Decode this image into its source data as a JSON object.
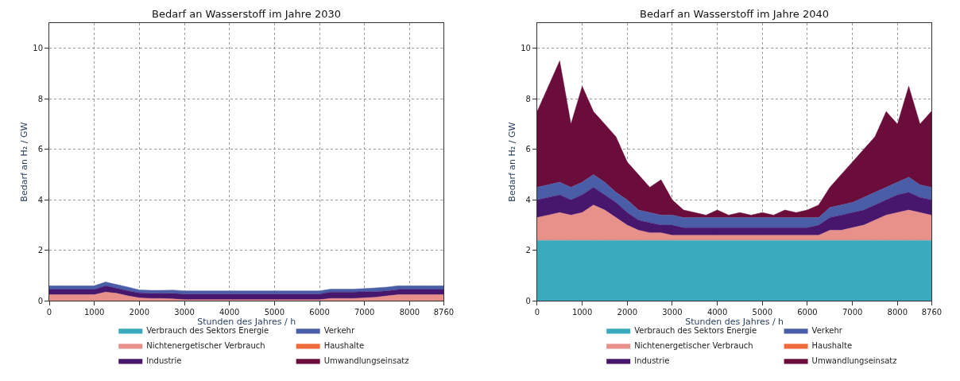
{
  "chart_data": [
    {
      "type": "area",
      "stacked": true,
      "title": "Bedarf an Wasserstoff im Jahre 2030",
      "xlabel": "Stunden des Jahres / h",
      "ylabel": "Bedarf an H₂ / GW",
      "x": [
        0,
        250,
        500,
        750,
        1000,
        1250,
        1500,
        1750,
        2000,
        2250,
        2500,
        2750,
        3000,
        3250,
        3500,
        3750,
        4000,
        4250,
        4500,
        4750,
        5000,
        5250,
        5500,
        5750,
        6000,
        6250,
        6500,
        6750,
        7000,
        7250,
        7500,
        7750,
        8000,
        8250,
        8500,
        8750,
        8760
      ],
      "xlim": [
        0,
        8760
      ],
      "xticks": [
        0,
        1000,
        2000,
        3000,
        4000,
        5000,
        6000,
        7000,
        8000,
        8760
      ],
      "ylim": [
        0,
        11
      ],
      "yticks": [
        0,
        2,
        4,
        6,
        8,
        10
      ],
      "grid": true,
      "legend": "bottom",
      "line_style": "solid",
      "marker": "none",
      "series": [
        {
          "name": "Verbrauch des Sektors Energie",
          "color": "#3aabbd",
          "values": [
            null,
            null,
            null,
            null,
            null,
            null,
            null,
            null,
            null,
            null,
            null,
            null,
            null,
            null,
            null,
            null,
            null,
            null,
            null,
            null,
            null,
            null,
            null,
            null,
            null,
            null,
            null,
            null,
            null,
            null,
            null,
            null,
            null,
            null,
            null,
            null,
            null
          ]
        },
        {
          "name": "Nichtenergetischer Verbrauch",
          "color": "#e8908a",
          "values": [
            0.25,
            0.25,
            0.25,
            0.25,
            0.25,
            0.35,
            0.3,
            0.2,
            0.12,
            0.1,
            0.1,
            0.08,
            0.05,
            0.05,
            0.05,
            0.05,
            0.05,
            0.05,
            0.05,
            0.05,
            0.05,
            0.05,
            0.05,
            0.05,
            0.05,
            0.1,
            0.1,
            0.1,
            0.12,
            0.15,
            0.2,
            0.25,
            0.25,
            0.25,
            0.25,
            0.25,
            0.25
          ]
        },
        {
          "name": "Industrie",
          "color": "#47176d",
          "values": [
            0.2,
            0.2,
            0.2,
            0.2,
            0.2,
            0.25,
            0.2,
            0.2,
            0.2,
            0.2,
            0.2,
            0.22,
            0.22,
            0.22,
            0.22,
            0.22,
            0.22,
            0.22,
            0.22,
            0.22,
            0.22,
            0.22,
            0.22,
            0.22,
            0.22,
            0.25,
            0.25,
            0.25,
            0.25,
            0.22,
            0.2,
            0.2,
            0.2,
            0.2,
            0.2,
            0.2,
            0.2
          ]
        },
        {
          "name": "Verkehr",
          "color": "#4a5ea8",
          "values": [
            0.15,
            0.15,
            0.15,
            0.15,
            0.15,
            0.15,
            0.15,
            0.15,
            0.12,
            0.12,
            0.12,
            0.13,
            0.13,
            0.13,
            0.13,
            0.13,
            0.13,
            0.13,
            0.13,
            0.13,
            0.13,
            0.13,
            0.13,
            0.13,
            0.13,
            0.12,
            0.12,
            0.12,
            0.12,
            0.15,
            0.15,
            0.15,
            0.15,
            0.15,
            0.15,
            0.15,
            0.15
          ]
        },
        {
          "name": "Haushalte",
          "color": "#ef6a3a",
          "values": [
            null,
            null,
            null,
            null,
            null,
            null,
            null,
            null,
            null,
            null,
            null,
            null,
            null,
            null,
            null,
            null,
            null,
            null,
            null,
            null,
            null,
            null,
            null,
            null,
            null,
            null,
            null,
            null,
            null,
            null,
            null,
            null,
            null,
            null,
            null,
            null,
            null
          ]
        },
        {
          "name": "Umwandlungseinsatz",
          "color": "#6a0d3a",
          "values": [
            null,
            null,
            null,
            null,
            null,
            null,
            null,
            null,
            null,
            null,
            null,
            null,
            null,
            null,
            null,
            null,
            null,
            null,
            null,
            null,
            null,
            null,
            null,
            null,
            null,
            null,
            null,
            null,
            null,
            null,
            null,
            null,
            null,
            null,
            null,
            null,
            null
          ]
        }
      ]
    },
    {
      "type": "area",
      "stacked": true,
      "title": "Bedarf an Wasserstoff im Jahre 2040",
      "xlabel": "Stunden des Jahres / h",
      "ylabel": "Bedarf an H₂ / GW",
      "x": [
        0,
        250,
        500,
        750,
        1000,
        1250,
        1500,
        1750,
        2000,
        2250,
        2500,
        2750,
        3000,
        3250,
        3500,
        3750,
        4000,
        4250,
        4500,
        4750,
        5000,
        5250,
        5500,
        5750,
        6000,
        6250,
        6500,
        6750,
        7000,
        7250,
        7500,
        7750,
        8000,
        8250,
        8500,
        8750,
        8760
      ],
      "xlim": [
        0,
        8760
      ],
      "xticks": [
        0,
        1000,
        2000,
        3000,
        4000,
        5000,
        6000,
        7000,
        8000,
        8760
      ],
      "ylim": [
        0,
        11
      ],
      "yticks": [
        0,
        2,
        4,
        6,
        8,
        10
      ],
      "grid": true,
      "legend": "bottom",
      "line_style": "solid",
      "marker": "none",
      "series": [
        {
          "name": "Verbrauch des Sektors Energie",
          "color": "#3aabbd",
          "values": [
            2.4,
            2.4,
            2.4,
            2.4,
            2.4,
            2.4,
            2.4,
            2.4,
            2.4,
            2.4,
            2.4,
            2.4,
            2.4,
            2.4,
            2.4,
            2.4,
            2.4,
            2.4,
            2.4,
            2.4,
            2.4,
            2.4,
            2.4,
            2.4,
            2.4,
            2.4,
            2.4,
            2.4,
            2.4,
            2.4,
            2.4,
            2.4,
            2.4,
            2.4,
            2.4,
            2.4,
            2.4
          ]
        },
        {
          "name": "Nichtenergetischer Verbrauch",
          "color": "#e8908a",
          "values": [
            0.9,
            1.0,
            1.1,
            1.0,
            1.1,
            1.4,
            1.2,
            0.9,
            0.6,
            0.4,
            0.3,
            0.3,
            0.2,
            0.2,
            0.2,
            0.2,
            0.2,
            0.2,
            0.2,
            0.2,
            0.2,
            0.2,
            0.2,
            0.2,
            0.2,
            0.2,
            0.4,
            0.4,
            0.5,
            0.6,
            0.8,
            1.0,
            1.1,
            1.2,
            1.1,
            1.0,
            1.0
          ]
        },
        {
          "name": "Industrie",
          "color": "#47176d",
          "values": [
            0.7,
            0.7,
            0.7,
            0.6,
            0.7,
            0.7,
            0.6,
            0.6,
            0.5,
            0.4,
            0.4,
            0.3,
            0.4,
            0.3,
            0.3,
            0.3,
            0.3,
            0.3,
            0.3,
            0.3,
            0.3,
            0.3,
            0.3,
            0.3,
            0.3,
            0.4,
            0.5,
            0.6,
            0.6,
            0.6,
            0.6,
            0.6,
            0.7,
            0.7,
            0.6,
            0.6,
            0.6
          ]
        },
        {
          "name": "Verkehr",
          "color": "#4a5ea8",
          "values": [
            0.5,
            0.5,
            0.5,
            0.5,
            0.5,
            0.5,
            0.5,
            0.4,
            0.5,
            0.4,
            0.4,
            0.4,
            0.4,
            0.4,
            0.4,
            0.4,
            0.4,
            0.4,
            0.4,
            0.4,
            0.4,
            0.4,
            0.4,
            0.4,
            0.4,
            0.3,
            0.4,
            0.4,
            0.4,
            0.5,
            0.5,
            0.5,
            0.5,
            0.6,
            0.5,
            0.5,
            0.5
          ]
        },
        {
          "name": "Haushalte",
          "color": "#ef6a3a",
          "values": [
            null,
            null,
            null,
            null,
            null,
            null,
            null,
            null,
            null,
            null,
            null,
            null,
            null,
            null,
            null,
            null,
            null,
            null,
            null,
            null,
            null,
            null,
            null,
            null,
            null,
            null,
            null,
            null,
            null,
            null,
            null,
            null,
            null,
            null,
            null,
            null,
            null
          ]
        },
        {
          "name": "Umwandlungseinsatz",
          "color": "#6a0d3a",
          "values": [
            3.0,
            3.9,
            4.8,
            2.5,
            3.8,
            2.5,
            2.3,
            2.2,
            1.5,
            1.4,
            1.0,
            1.4,
            0.6,
            0.3,
            0.2,
            0.1,
            0.3,
            0.1,
            0.2,
            0.1,
            0.2,
            0.1,
            0.3,
            0.2,
            0.3,
            0.5,
            0.8,
            1.2,
            1.6,
            1.9,
            2.2,
            3.0,
            2.3,
            3.6,
            2.4,
            3.0,
            3.0
          ]
        }
      ]
    }
  ]
}
